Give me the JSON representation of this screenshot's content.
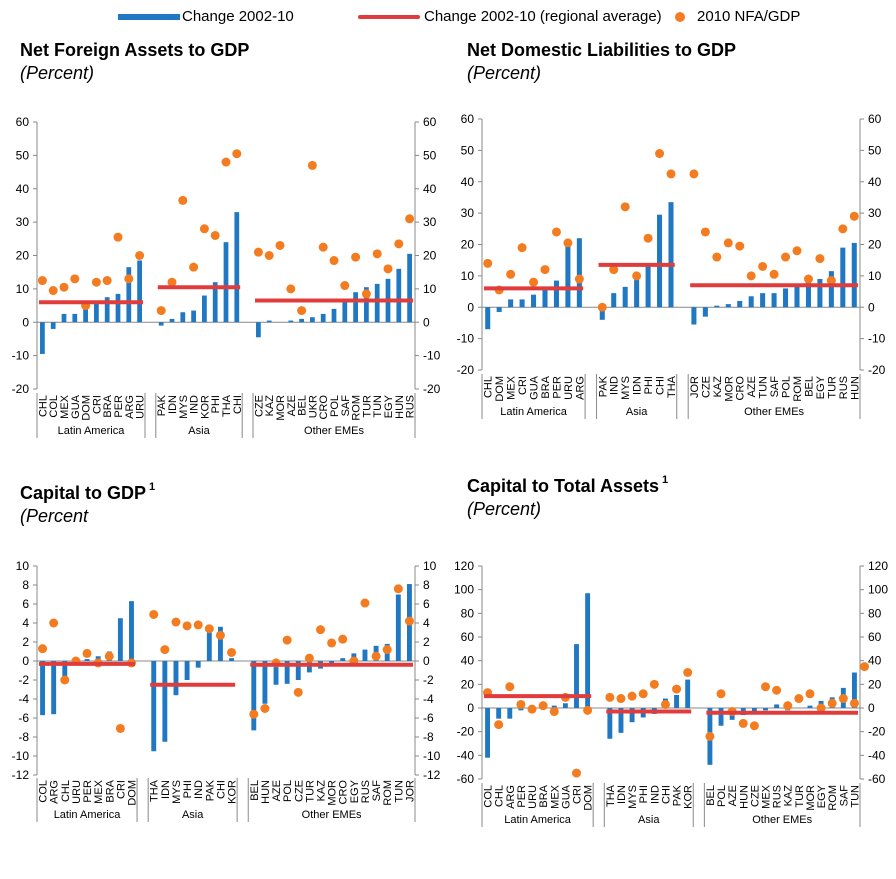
{
  "legend": {
    "bar_label": "Change 2002-10",
    "line_label": "Change 2002-10 (regional average)",
    "dot_label": "2010 NFA/GDP"
  },
  "colors": {
    "bar": "#1f78c1",
    "line": "#e03c3c",
    "dot": "#f47c20",
    "axis": "#888888"
  },
  "chart_data": [
    {
      "type": "bar",
      "title": "Net Foreign Assets to GDP",
      "subtitle": "(Percent)",
      "ylim": [
        -20,
        60
      ],
      "yticks": [
        -20,
        -10,
        0,
        10,
        20,
        30,
        40,
        50,
        60
      ],
      "groups": [
        {
          "name": "Latin America",
          "categories": [
            "CHL",
            "COL",
            "MEX",
            "GUA",
            "DOM",
            "CRI",
            "BRA",
            "PER",
            "ARG",
            "URU"
          ],
          "bars": [
            -9.5,
            -2,
            2.5,
            2.5,
            4,
            6.5,
            7.5,
            8.5,
            16.5,
            18.5
          ],
          "dots": [
            12.5,
            9.5,
            10.5,
            13,
            5,
            12,
            12.5,
            25.5,
            13,
            20
          ],
          "average": 6
        },
        {
          "name": "Asia",
          "categories": [
            "PAK",
            "IDN",
            "MYS",
            "IND",
            "KOR",
            "PHI",
            "THA",
            "CHI"
          ],
          "bars": [
            -1,
            1,
            3,
            3.5,
            8,
            12,
            24,
            33
          ],
          "dots": [
            3.5,
            12,
            36.5,
            16.5,
            28,
            26,
            48,
            50.5
          ],
          "average": 10.5
        },
        {
          "name": "Other EMEs",
          "categories": [
            "CZE",
            "KAZ",
            "MOR",
            "AZE",
            "BEL",
            "UKR",
            "CRO",
            "POL",
            "SAF",
            "ROM",
            "TUR",
            "TUN",
            "EGY",
            "HUN",
            "RUS"
          ],
          "bars": [
            -4.5,
            0.5,
            0,
            0.5,
            1,
            1.5,
            2.5,
            4,
            6,
            9,
            10.5,
            11.5,
            13,
            16,
            20.5
          ],
          "dots": [
            21,
            20,
            23,
            10,
            3.5,
            47,
            22.5,
            18.5,
            11,
            19.5,
            8.5,
            20.5,
            16,
            23.5,
            31
          ],
          "average": 6.5
        }
      ]
    },
    {
      "type": "bar",
      "title": "Net Domestic Liabilities to GDP",
      "subtitle": "(Percent)",
      "ylim": [
        -20,
        60
      ],
      "yticks": [
        -20,
        -10,
        0,
        10,
        20,
        30,
        40,
        50,
        60
      ],
      "groups": [
        {
          "name": "Latin America",
          "categories": [
            "CHL",
            "DOM",
            "MEX",
            "CRI",
            "GUA",
            "BRA",
            "PER",
            "URU",
            "ARG"
          ],
          "bars": [
            -7,
            -1.5,
            2.5,
            2.5,
            4,
            6.5,
            8.5,
            19.5,
            22
          ],
          "dots": [
            14,
            5.5,
            10.5,
            19,
            8,
            12,
            24,
            20.5,
            9
          ],
          "average": 6
        },
        {
          "name": "Asia",
          "categories": [
            "PAK",
            "IND",
            "MYS",
            "IDN",
            "PHI",
            "CHI",
            "THA"
          ],
          "bars": [
            -4,
            4.5,
            6.5,
            9.5,
            13.5,
            29.5,
            33.5
          ],
          "dots": [
            0,
            12,
            32,
            10,
            22,
            49,
            42.5
          ],
          "average": 13.5
        },
        {
          "name": "Other EMEs",
          "categories": [
            "JOR",
            "CZE",
            "KAZ",
            "MOR",
            "CRO",
            "AZE",
            "TUN",
            "SAF",
            "POL",
            "ROM",
            "BEL",
            "EGY",
            "TUR",
            "RUS",
            "HUN"
          ],
          "bars": [
            -5.5,
            -3,
            0.5,
            1,
            2,
            3.5,
            4.5,
            4.5,
            6,
            7,
            8,
            9,
            11.5,
            19,
            20.5
          ],
          "dots": [
            42.5,
            24,
            16,
            20.5,
            19.5,
            10,
            13,
            10.5,
            16,
            18,
            9,
            15.5,
            8.5,
            25,
            29
          ],
          "average": 7
        }
      ]
    },
    {
      "type": "bar",
      "title": "Capital to GDP",
      "title_note": "1",
      "subtitle": "(Percent",
      "ylim": [
        -12,
        10
      ],
      "yticks": [
        -12,
        -10,
        -8,
        -6,
        -4,
        -2,
        0,
        2,
        4,
        6,
        8,
        10
      ],
      "groups": [
        {
          "name": "Latin America",
          "categories": [
            "COL",
            "ARG",
            "CHL",
            "URU",
            "PER",
            "MEX",
            "BRA",
            "CRI",
            "DOM"
          ],
          "bars": [
            -5.7,
            -5.6,
            -2,
            -0.2,
            0.2,
            0.5,
            1,
            4.5,
            6.3
          ],
          "dots": [
            1.3,
            4,
            -2,
            0,
            0.8,
            -0.2,
            0.5,
            -7.1,
            -0.2
          ],
          "average": -0.3
        },
        {
          "name": "Asia",
          "categories": [
            "THA",
            "IDN",
            "MYS",
            "PHI",
            "IND",
            "PAK",
            "CHI",
            "KOR"
          ],
          "bars": [
            -9.5,
            -8.5,
            -3.6,
            -2,
            -0.7,
            3,
            3.6,
            0.3
          ],
          "dots": [
            4.9,
            1.2,
            4.1,
            3.7,
            3.8,
            3.4,
            2.7,
            0.9
          ],
          "average": -2.5
        },
        {
          "name": "Other EMEs",
          "categories": [
            "BEL",
            "HUN",
            "AZE",
            "POL",
            "CZE",
            "TUR",
            "KAZ",
            "MOR",
            "CRO",
            "EGY",
            "RUS",
            "SAF",
            "ROM",
            "TUN",
            "JOR"
          ],
          "bars": [
            -7.3,
            -4.5,
            -2.5,
            -2.4,
            -2,
            -1.2,
            -0.8,
            -0.5,
            0.3,
            0.8,
            1.2,
            1.6,
            1.8,
            7,
            8.1
          ],
          "dots": [
            -5.6,
            -5,
            -0.2,
            2.2,
            -3.3,
            0.3,
            3.3,
            1.9,
            2.3,
            0,
            6.1,
            0.5,
            1.2,
            7.6,
            4.2
          ],
          "average": -0.4
        }
      ]
    },
    {
      "type": "bar",
      "title": "Capital to Total Assets",
      "title_note": "1",
      "subtitle": "(Percent)",
      "ylim": [
        -60,
        120
      ],
      "yticks": [
        -60,
        -40,
        -20,
        0,
        20,
        40,
        60,
        80,
        100,
        120
      ],
      "groups": [
        {
          "name": "Latin America",
          "categories": [
            "COL",
            "CHL",
            "ARG",
            "PER",
            "URU",
            "BRA",
            "MEX",
            "GUA",
            "CRI",
            "DOM"
          ],
          "bars": [
            -42,
            -9,
            -9,
            -2,
            -1,
            0,
            2,
            4,
            54,
            97
          ],
          "dots": [
            13,
            -14,
            18,
            3,
            -1,
            2,
            -3,
            9,
            -55,
            -2
          ],
          "average": 10
        },
        {
          "name": "Asia",
          "categories": [
            "THA",
            "IDN",
            "MYS",
            "PHI",
            "IND",
            "CHI",
            "PAK",
            "KOR"
          ],
          "bars": [
            -26,
            -21,
            -12,
            -8,
            -5,
            8,
            11,
            24
          ],
          "dots": [
            9,
            8,
            10,
            12,
            20,
            3,
            16,
            30
          ],
          "average": -3
        },
        {
          "name": "Other EMEs",
          "categories": [
            "BEL",
            "POL",
            "AZE",
            "HUN",
            "CZE",
            "MEX",
            "RUS",
            "KAZ",
            "TUR",
            "MOR",
            "EGY",
            "ROM",
            "SAF",
            "TUN"
          ],
          "bars": [
            -48,
            -15,
            -10,
            -6,
            -4,
            -2,
            3,
            -2,
            0,
            2,
            6,
            9,
            17,
            30
          ],
          "dots": [
            -24,
            12,
            -3,
            -13,
            -15,
            18,
            15,
            2,
            8,
            12,
            0,
            4,
            8,
            4
          ],
          "average": -4,
          "extra_dot": 35
        }
      ]
    }
  ]
}
